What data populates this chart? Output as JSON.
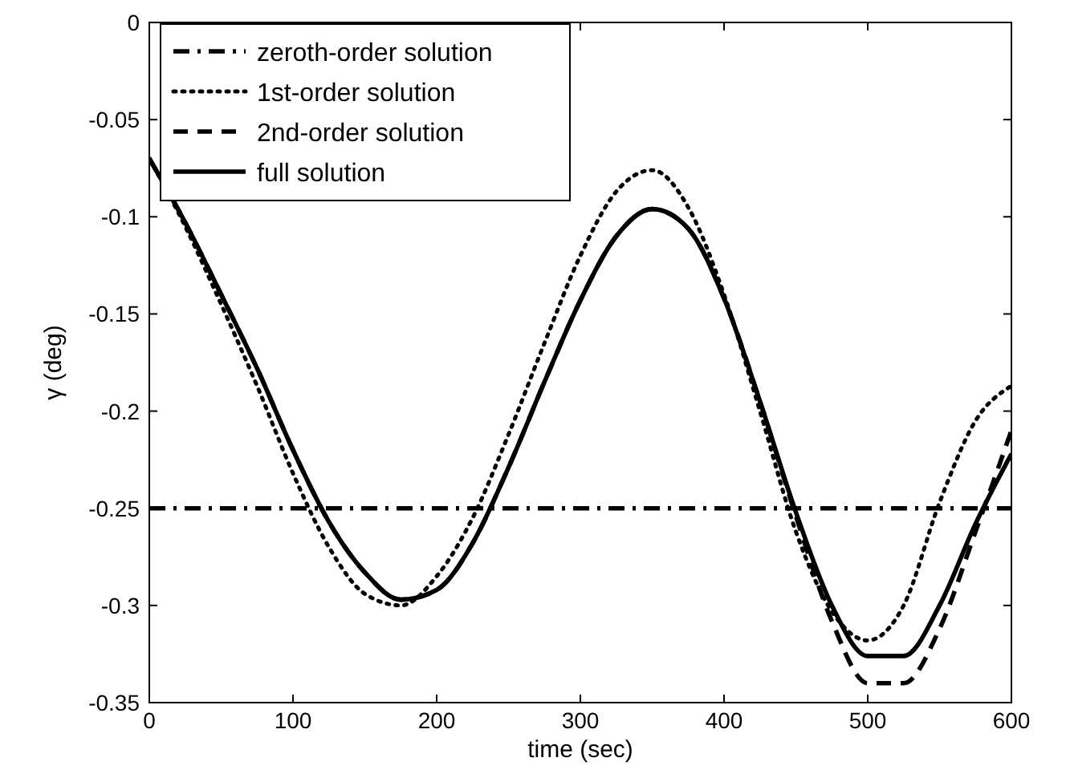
{
  "chart_data": {
    "type": "line",
    "xlabel": "time (sec)",
    "ylabel": "γ (deg)",
    "x": [
      0,
      25,
      50,
      75,
      100,
      125,
      150,
      175,
      200,
      225,
      250,
      275,
      300,
      325,
      350,
      375,
      400,
      425,
      450,
      475,
      500,
      525,
      550,
      575,
      600
    ],
    "series": [
      {
        "name": "zeroth-order solution",
        "color": "#000000",
        "line_style": "dashdot",
        "x": [
          0,
          600
        ],
        "values": [
          -0.25,
          -0.25
        ]
      },
      {
        "name": "1st-order solution",
        "color": "#000000",
        "line_style": "dotted",
        "values": [
          -0.07,
          -0.105,
          -0.145,
          -0.187,
          -0.232,
          -0.27,
          -0.294,
          -0.3,
          -0.285,
          -0.255,
          -0.212,
          -0.165,
          -0.12,
          -0.087,
          -0.076,
          -0.095,
          -0.14,
          -0.2,
          -0.262,
          -0.303,
          -0.318,
          -0.3,
          -0.247,
          -0.205,
          -0.187
        ]
      },
      {
        "name": "2nd-order solution",
        "color": "#000000",
        "line_style": "dashed",
        "values": [
          -0.07,
          -0.103,
          -0.14,
          -0.178,
          -0.22,
          -0.257,
          -0.283,
          -0.297,
          -0.292,
          -0.268,
          -0.229,
          -0.185,
          -0.143,
          -0.11,
          -0.096,
          -0.106,
          -0.142,
          -0.195,
          -0.254,
          -0.308,
          -0.34,
          -0.34,
          -0.312,
          -0.262,
          -0.21
        ]
      },
      {
        "name": "full solution",
        "color": "#000000",
        "line_style": "solid",
        "values": [
          -0.07,
          -0.103,
          -0.14,
          -0.178,
          -0.22,
          -0.257,
          -0.283,
          -0.297,
          -0.292,
          -0.268,
          -0.229,
          -0.185,
          -0.143,
          -0.11,
          -0.096,
          -0.106,
          -0.142,
          -0.195,
          -0.252,
          -0.3,
          -0.326,
          -0.326,
          -0.3,
          -0.258,
          -0.222
        ]
      }
    ],
    "xlim": [
      0,
      600
    ],
    "xticks": [
      0,
      100,
      200,
      300,
      400,
      500,
      600
    ],
    "ylim": [
      -0.35,
      0
    ],
    "yticks": [
      -0.35,
      -0.3,
      -0.25,
      -0.2,
      -0.15,
      -0.1,
      -0.05,
      0
    ],
    "grid": false,
    "legend": "top left"
  }
}
